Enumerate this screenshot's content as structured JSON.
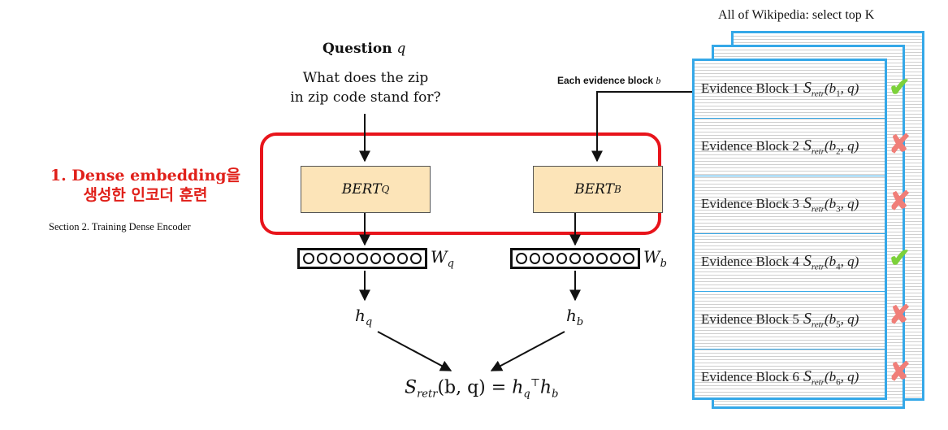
{
  "header": {
    "wiki_title": "All of Wikipedia: select top K"
  },
  "left": {
    "title_line1": "1. Dense embedding을",
    "title_line2": "생성한 인코더 훈련",
    "section": "Section 2. Training Dense Encoder"
  },
  "question": {
    "label": "Question",
    "var": "q",
    "text_line1": "What does the zip",
    "text_line2": "in zip code stand for?"
  },
  "evidence_label": {
    "text": "Each evidence block",
    "var": "b"
  },
  "encoders": {
    "q_name": "BERT",
    "q_sub": "Q",
    "b_name": "BERT",
    "b_sub": "B"
  },
  "weights": {
    "wq": "W",
    "wq_sub": "q",
    "wb": "W",
    "wb_sub": "b"
  },
  "hidden": {
    "hq": "h",
    "hq_sub": "q",
    "hb": "h",
    "hb_sub": "b"
  },
  "formula": {
    "lhs_s": "S",
    "lhs_sub": "retr",
    "lhs_args": "(b, q) = ",
    "h1": "h",
    "h1_sub": "q",
    "h1_sup": "⊤",
    "h2": "h",
    "h2_sub": "b"
  },
  "evidence_blocks": [
    {
      "label": "Evidence Block 1",
      "arg": "(b",
      "idx": "1",
      "mark": "check"
    },
    {
      "label": "Evidence Block 2",
      "arg": "(b",
      "idx": "2",
      "mark": "cross"
    },
    {
      "label": "Evidence Block 3",
      "arg": "(b",
      "idx": "3",
      "mark": "cross"
    },
    {
      "label": "Evidence Block 4",
      "arg": "(b",
      "idx": "4",
      "mark": "check"
    },
    {
      "label": "Evidence Block 5",
      "arg": "(b",
      "idx": "5",
      "mark": "cross"
    },
    {
      "label": "Evidence Block 6",
      "arg": "(b",
      "idx": "6",
      "mark": "cross"
    }
  ],
  "score_symbol": {
    "s": "S",
    "sub": "retr",
    "q": ", q)"
  },
  "colors": {
    "red": "#e8141b",
    "blue": "#35a8e8",
    "bert_fill": "#fce4b8",
    "check": "#7cd13a",
    "cross": "#f07e78"
  }
}
